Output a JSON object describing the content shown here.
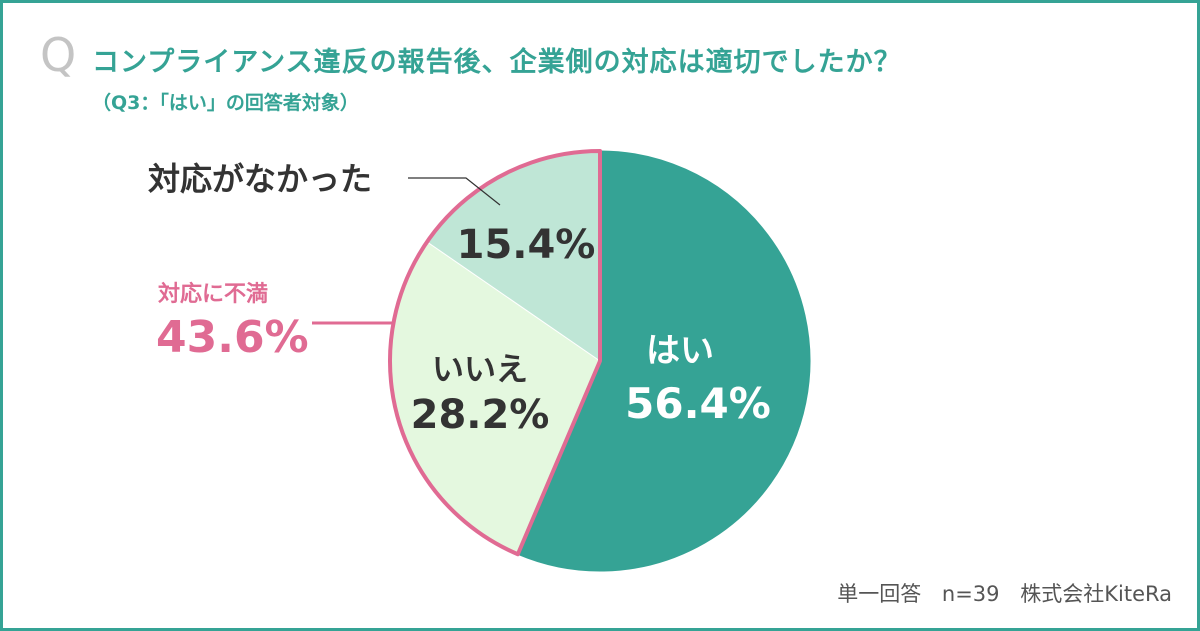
{
  "header": {
    "q_mark": "Q",
    "title": "コンプライアンス違反の報告後、企業側の対応は適切でしたか？",
    "subtitle": "（Q3：「はい」の回答者対象）"
  },
  "chart_data": {
    "type": "pie",
    "slices": [
      {
        "label": "はい",
        "value": 56.4,
        "value_label": "56.4%",
        "color": "#35a395"
      },
      {
        "label": "いいえ",
        "value": 28.2,
        "value_label": "28.2%",
        "color": "#e4f8df"
      },
      {
        "label": "対応がなかった",
        "value": 15.4,
        "value_label": "15.4%",
        "color": "#bfe6d6"
      }
    ],
    "group_annotation": {
      "label": "対応に不満",
      "value": 43.6,
      "value_label": "43.6%",
      "color": "#e06b93"
    },
    "outline_color": "#e06b93"
  },
  "footer": {
    "answer_type": "単一回答",
    "sample": "n=39",
    "source": "株式会社KiteRa"
  }
}
